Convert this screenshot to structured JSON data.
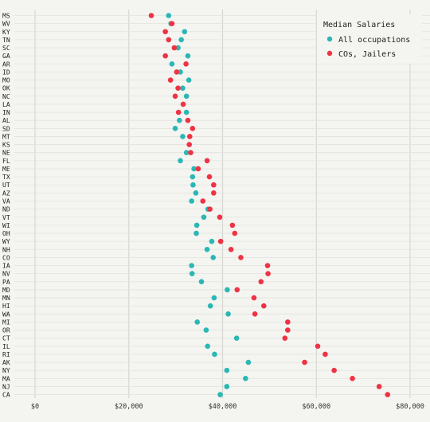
{
  "colors": {
    "all": "#2ab7b5",
    "co": "#ee3344",
    "background": "#f4f4f0"
  },
  "chart_data": {
    "type": "scatter",
    "xlim": [
      -4000,
      82000
    ],
    "xticks": [
      {
        "value": 0,
        "label": "$0"
      },
      {
        "value": 20000,
        "label": "$20,000"
      },
      {
        "value": 40000,
        "label": "$40,000"
      },
      {
        "value": 60000,
        "label": "$60,000"
      },
      {
        "value": 80000,
        "label": "$80,000"
      }
    ],
    "grid": true,
    "legend": {
      "title": "Median Salaries",
      "position": "top-right",
      "entries": [
        {
          "key": "all",
          "label": "All occupations"
        },
        {
          "key": "co",
          "label": "COs, Jailers"
        }
      ]
    },
    "states": [
      "MS",
      "WV",
      "KY",
      "TN",
      "SC",
      "GA",
      "AR",
      "ID",
      "MO",
      "OK",
      "NC",
      "LA",
      "IN",
      "AL",
      "SD",
      "MT",
      "KS",
      "NE",
      "FL",
      "ME",
      "TX",
      "UT",
      "AZ",
      "VA",
      "ND",
      "VT",
      "WI",
      "OH",
      "WY",
      "NH",
      "CO",
      "IA",
      "NV",
      "PA",
      "MD",
      "MN",
      "HI",
      "WA",
      "MI",
      "OR",
      "CT",
      "IL",
      "RI",
      "AK",
      "NY",
      "MA",
      "NJ",
      "CA"
    ],
    "series": [
      {
        "key": "all",
        "name": "All occupations",
        "values": [
          28500,
          29000,
          31900,
          31200,
          30500,
          32600,
          29200,
          31000,
          32800,
          31500,
          32300,
          null,
          32300,
          30800,
          29900,
          31500,
          null,
          32300,
          31000,
          33900,
          33600,
          33700,
          34300,
          33400,
          36900,
          36000,
          34500,
          34400,
          37700,
          36700,
          38000,
          33400,
          33500,
          35500,
          41000,
          38200,
          37400,
          41200,
          34600,
          36500,
          43000,
          36800,
          38300,
          45500,
          40900,
          44900,
          40900,
          39500
        ]
      },
      {
        "key": "co",
        "name": "COs, Jailers",
        "values": [
          24800,
          29200,
          27800,
          28500,
          29700,
          27800,
          32200,
          30200,
          28900,
          30500,
          29900,
          31600,
          30600,
          32600,
          33600,
          33000,
          32900,
          33200,
          36700,
          34800,
          37200,
          38100,
          38100,
          35800,
          37300,
          39400,
          42100,
          42600,
          39600,
          41800,
          43900,
          49600,
          49700,
          48200,
          43100,
          46700,
          48800,
          46900,
          53900,
          53900,
          53300,
          60300,
          61900,
          57500,
          63800,
          67700,
          73400,
          75200
        ]
      }
    ]
  }
}
